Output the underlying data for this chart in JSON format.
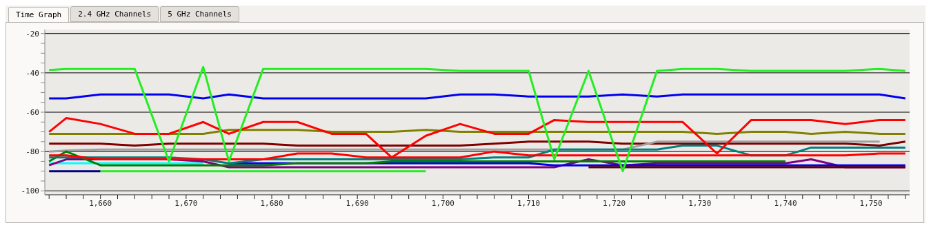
{
  "chart_data": {
    "type": "line",
    "annotations": [
      "Time Graph",
      "2.4 GHz Channels",
      "5 GHz Channels"
    ],
    "x": [
      1654,
      1656,
      1660,
      1664,
      1668,
      1672,
      1675,
      1679,
      1683,
      1687,
      1691,
      1694,
      1698,
      1702,
      1706,
      1710,
      1713,
      1717,
      1721,
      1725,
      1728,
      1732,
      1736,
      1740,
      1743,
      1747,
      1751,
      1754
    ],
    "xlim": [
      1653.5,
      1754.5
    ],
    "xticks": [
      {
        "value": 1654,
        "label": null
      },
      {
        "value": 1656,
        "label": null
      },
      {
        "value": 1658,
        "label": null
      },
      {
        "value": 1660,
        "label": "1,660"
      },
      {
        "value": 1662,
        "label": null
      },
      {
        "value": 1664,
        "label": null
      },
      {
        "value": 1666,
        "label": null
      },
      {
        "value": 1668,
        "label": null
      },
      {
        "value": 1670,
        "label": "1,670"
      },
      {
        "value": 1672,
        "label": null
      },
      {
        "value": 1674,
        "label": null
      },
      {
        "value": 1676,
        "label": null
      },
      {
        "value": 1678,
        "label": null
      },
      {
        "value": 1680,
        "label": "1,680"
      },
      {
        "value": 1682,
        "label": null
      },
      {
        "value": 1684,
        "label": null
      },
      {
        "value": 1686,
        "label": null
      },
      {
        "value": 1688,
        "label": null
      },
      {
        "value": 1690,
        "label": "1,690"
      },
      {
        "value": 1692,
        "label": null
      },
      {
        "value": 1694,
        "label": null
      },
      {
        "value": 1696,
        "label": null
      },
      {
        "value": 1698,
        "label": null
      },
      {
        "value": 1700,
        "label": "1,700"
      },
      {
        "value": 1702,
        "label": null
      },
      {
        "value": 1704,
        "label": null
      },
      {
        "value": 1706,
        "label": null
      },
      {
        "value": 1708,
        "label": null
      },
      {
        "value": 1710,
        "label": "1,710"
      },
      {
        "value": 1712,
        "label": null
      },
      {
        "value": 1714,
        "label": null
      },
      {
        "value": 1716,
        "label": null
      },
      {
        "value": 1718,
        "label": null
      },
      {
        "value": 1720,
        "label": "1,720"
      },
      {
        "value": 1722,
        "label": null
      },
      {
        "value": 1724,
        "label": null
      },
      {
        "value": 1726,
        "label": null
      },
      {
        "value": 1728,
        "label": null
      },
      {
        "value": 1730,
        "label": "1,730"
      },
      {
        "value": 1732,
        "label": null
      },
      {
        "value": 1734,
        "label": null
      },
      {
        "value": 1736,
        "label": null
      },
      {
        "value": 1738,
        "label": null
      },
      {
        "value": 1740,
        "label": "1,740"
      },
      {
        "value": 1742,
        "label": null
      },
      {
        "value": 1744,
        "label": null
      },
      {
        "value": 1746,
        "label": null
      },
      {
        "value": 1748,
        "label": null
      },
      {
        "value": 1750,
        "label": "1,750"
      },
      {
        "value": 1752,
        "label": null
      },
      {
        "value": 1754,
        "label": null
      }
    ],
    "ylim": [
      -102,
      -18
    ],
    "yticks": [
      -100,
      {
        "value": -95,
        "label": null
      },
      {
        "value": -90,
        "label": null
      },
      {
        "value": -85,
        "label": null
      },
      {
        "value": -80,
        "label": "-80"
      },
      {
        "value": -75,
        "label": null
      },
      {
        "value": -70,
        "label": null
      },
      {
        "value": -65,
        "label": null
      },
      -60,
      {
        "value": -55,
        "label": null
      },
      {
        "value": -50,
        "label": null
      },
      {
        "value": -45,
        "label": null
      },
      -40,
      {
        "value": -35,
        "label": null
      },
      {
        "value": -30,
        "label": null
      },
      {
        "value": -25,
        "label": null
      },
      -20
    ],
    "grid": "y",
    "marker": "none",
    "line_style": "solid",
    "series": [
      {
        "color": "#808000",
        "values": [
          -71,
          -71,
          -71,
          -71,
          -71,
          -71,
          -69,
          -69,
          -69,
          -70,
          -70,
          -70,
          -69,
          -70,
          -70,
          -70,
          -70,
          -70,
          -70,
          -70,
          -70,
          -71,
          -70,
          -70,
          -71,
          -70,
          -71,
          -71
        ]
      },
      {
        "color": "#800000",
        "values": [
          -76,
          -76,
          -76,
          -77,
          -76,
          -76,
          -76,
          -76,
          -77,
          -77,
          -77,
          -77,
          -77,
          -77,
          -76,
          -75,
          -75,
          -75,
          -76,
          -76,
          -76,
          -76,
          -76,
          -76,
          -76,
          -76,
          -77,
          -75
        ]
      },
      {
        "color": "#a0a0a0",
        "values": [
          -80,
          -79.5,
          -79,
          -79,
          -79,
          -79,
          -79,
          -79,
          -79,
          -79,
          -79,
          -79,
          -79,
          -79,
          -79,
          -79,
          -79,
          -79,
          -79,
          -75,
          -75,
          -75,
          -75,
          -75,
          -75,
          -75,
          -75,
          null
        ]
      },
      {
        "color": "#00ffff",
        "values": [
          -86,
          -86,
          -86,
          -86,
          -86,
          -86,
          null,
          null,
          null,
          null,
          null,
          null,
          null,
          null,
          null,
          null,
          null,
          null,
          null,
          null,
          null,
          null,
          null,
          null,
          null,
          null,
          null,
          null
        ]
      },
      {
        "color": "#000080",
        "values": [
          -90,
          -90,
          -90,
          null,
          null,
          null,
          null,
          null,
          null,
          null,
          null,
          null,
          null,
          null,
          null,
          null,
          null,
          null,
          null,
          null,
          null,
          null,
          null,
          null,
          null,
          null,
          null,
          null
        ]
      },
      {
        "color": "#22ee22",
        "values": [
          null,
          null,
          -90,
          -90,
          -90,
          -90,
          -90,
          -90,
          -90,
          -90,
          -90,
          -90,
          -90,
          null,
          null,
          null,
          null,
          null,
          null,
          null,
          null,
          null,
          null,
          null,
          null,
          null,
          null,
          null
        ]
      },
      {
        "color": "#800080",
        "values": [
          -87,
          -84,
          -84,
          -84,
          -84,
          -85,
          -88,
          -88,
          -88,
          -88,
          -88,
          -88,
          -88,
          -88,
          -88,
          -88,
          -88,
          -84,
          -87,
          -86,
          -86,
          -86,
          -86,
          -86,
          -84,
          -88,
          -88,
          -88
        ]
      },
      {
        "color": "#0000ee",
        "values": [
          null,
          null,
          null,
          null,
          null,
          null,
          -86,
          -86,
          -86,
          -86,
          -86,
          -86,
          -86,
          -86,
          -86,
          -86,
          -87,
          -87,
          -87,
          -87,
          -87,
          -87,
          -87,
          -87,
          -87,
          -87,
          -87,
          -87
        ]
      },
      {
        "color": "#600000",
        "values": [
          null,
          null,
          null,
          null,
          null,
          null,
          null,
          null,
          null,
          null,
          null,
          null,
          null,
          null,
          null,
          null,
          null,
          -88,
          -88,
          -88,
          -88,
          -88,
          -88,
          -88,
          -88,
          -88,
          -88,
          -88
        ]
      },
      {
        "color": "#008000",
        "values": [
          -85,
          -80,
          -87,
          -87,
          -87,
          -87,
          -87,
          -87,
          -86,
          -86,
          -86,
          -85,
          -85,
          -85,
          -85,
          -85,
          -85,
          -85,
          -85,
          -85,
          -85,
          -85,
          -85,
          -85,
          null,
          null,
          null,
          null
        ]
      },
      {
        "color": "#008080",
        "values": [
          -83,
          -83,
          -83,
          -83,
          -83,
          -84,
          -86,
          -84,
          -84,
          -84,
          -84,
          -84,
          -84,
          -84,
          -83,
          -83,
          -79,
          -79,
          -79,
          -79,
          -77,
          -77,
          -82,
          -82,
          -78,
          -78,
          -78,
          -78
        ]
      },
      {
        "color": "#ff0000",
        "values": [
          -82,
          -82,
          -84,
          -84,
          -84,
          -84,
          -84,
          -84,
          -81,
          -81,
          -83,
          -83,
          -83,
          -83,
          -80,
          -82,
          -82,
          -82,
          -82,
          -82,
          -82,
          -82,
          -82,
          -82,
          -82,
          -82,
          -81,
          -81
        ]
      },
      {
        "color": "#ff0000",
        "values": [
          -70,
          -63,
          -66,
          -71,
          -71,
          -65,
          -71,
          -65,
          -65,
          -71,
          -71,
          -83,
          -72,
          -66,
          -71,
          -71,
          -64,
          -65,
          -65,
          -65,
          -65,
          -81,
          -64,
          -64,
          -64,
          -66,
          -64,
          -64
        ]
      },
      {
        "color": "#0000ee",
        "values": [
          -53,
          -53,
          -51,
          -51,
          -51,
          -53,
          -51,
          -53,
          -53,
          -53,
          -53,
          -53,
          -53,
          -51,
          -51,
          -52,
          -52,
          -52,
          -51,
          -52,
          -51,
          -51,
          -51,
          -51,
          -51,
          -51,
          -51,
          -53
        ]
      },
      {
        "color": "#22ee22",
        "values": [
          -38.6,
          -38,
          -38,
          -38,
          -85,
          -37,
          -85,
          -38,
          -38,
          -38,
          -38,
          -38,
          -38,
          -39,
          -39,
          -39,
          -84,
          -39,
          -90,
          -39,
          -38,
          -38,
          -39,
          -39,
          -39,
          -39,
          -38,
          -39
        ]
      }
    ]
  }
}
